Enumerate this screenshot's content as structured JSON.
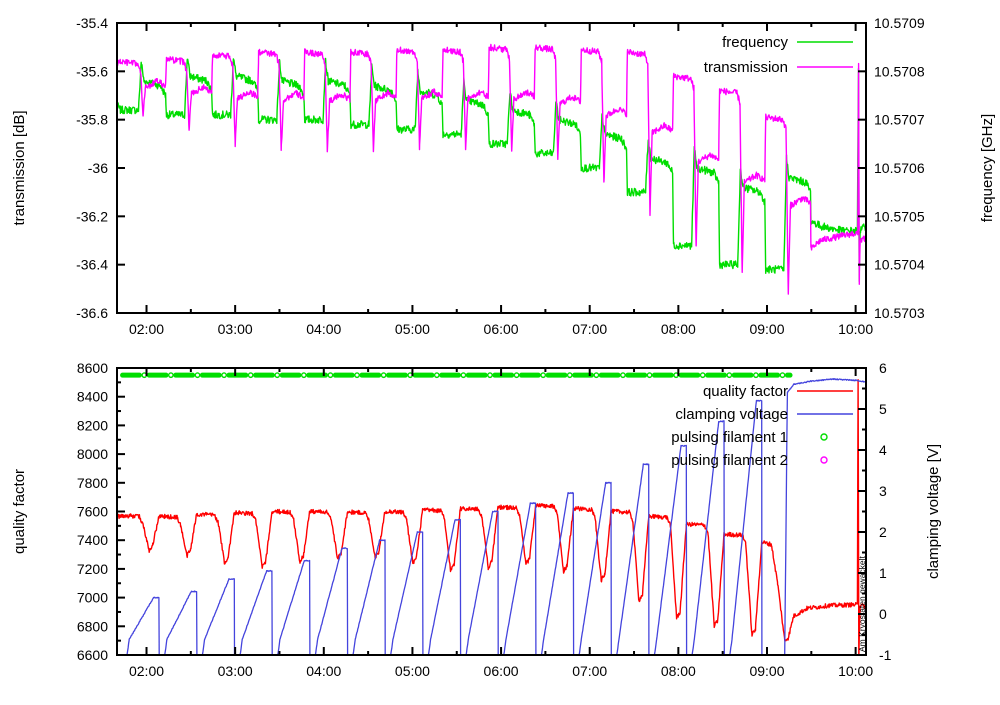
{
  "chart_data": [
    {
      "type": "line",
      "panel": "top",
      "x_axis": {
        "min_hour": 1.667,
        "max_hour": 10.117,
        "minor_step": 0.5,
        "ticks": [
          {
            "v": 2,
            "label": "02:00"
          },
          {
            "v": 3,
            "label": "03:00"
          },
          {
            "v": 4,
            "label": "04:00"
          },
          {
            "v": 5,
            "label": "05:00"
          },
          {
            "v": 6,
            "label": "06:00"
          },
          {
            "v": 7,
            "label": "07:00"
          },
          {
            "v": 8,
            "label": "08:00"
          },
          {
            "v": 9,
            "label": "09:00"
          },
          {
            "v": 10,
            "label": "10:00"
          }
        ]
      },
      "y_left": {
        "label": "transmission [dB]",
        "min": -36.6,
        "max": -35.4,
        "ticks": [
          {
            "v": -35.4,
            "label": "-35.4"
          },
          {
            "v": -35.6,
            "label": "-35.6"
          },
          {
            "v": -35.8,
            "label": "-35.8"
          },
          {
            "v": -36,
            "label": "-36"
          },
          {
            "v": -36.2,
            "label": "-36.2"
          },
          {
            "v": -36.4,
            "label": "-36.4"
          },
          {
            "v": -36.6,
            "label": "-36.6"
          }
        ]
      },
      "y_right": {
        "label": "frequency [GHz]",
        "min": 10.5703,
        "max": 10.5709,
        "ticks": [
          {
            "v": 10.5709,
            "label": "10.5709"
          },
          {
            "v": 10.5708,
            "label": "10.5708"
          },
          {
            "v": 10.5707,
            "label": "10.5707"
          },
          {
            "v": 10.5706,
            "label": "10.5706"
          },
          {
            "v": 10.5705,
            "label": "10.5705"
          },
          {
            "v": 10.5704,
            "label": "10.5704"
          },
          {
            "v": 10.5703,
            "label": "10.5703"
          }
        ]
      },
      "legend": [
        {
          "label": "frequency",
          "color": "#00dd00",
          "sample": "line"
        },
        {
          "label": "transmission",
          "color": "#ff00ff",
          "sample": "line"
        }
      ],
      "series": [
        {
          "name": "frequency",
          "axis": "right",
          "color": "#00dd00",
          "width": 1.4,
          "noise": 8e-06,
          "pattern": {
            "kind": "square-low-high",
            "start": 1.7,
            "period": 0.52,
            "count": 15,
            "high": [
              10.57078,
              10.57079,
              10.57079,
              10.57078,
              10.57078,
              10.57077,
              10.57076,
              10.57074,
              10.57072,
              10.5707,
              10.57067,
              10.57062,
              10.5706,
              10.57056,
              10.57058
            ],
            "low": [
              10.57072,
              10.57071,
              10.57071,
              10.5707,
              10.5707,
              10.57069,
              10.57068,
              10.57067,
              10.57065,
              10.57063,
              10.5706,
              10.57055,
              10.57044,
              10.5704,
              10.57039
            ]
          },
          "pre": [
            [
              1.667,
              10.57073
            ]
          ],
          "post": [
            [
              9.285,
              10.57051
            ],
            [
              9.4,
              10.5705
            ],
            [
              9.6,
              10.57048
            ],
            [
              9.85,
              10.57047
            ],
            [
              10.02,
              10.57047
            ],
            [
              10.032,
              10.5708
            ],
            [
              10.04,
              10.57037
            ],
            [
              10.05,
              10.57047
            ],
            [
              10.117,
              10.57048
            ]
          ]
        },
        {
          "name": "transmission",
          "axis": "left",
          "color": "#ff00ff",
          "width": 1.4,
          "noise": 0.013,
          "pattern": {
            "kind": "square-top",
            "start": 1.7,
            "period": 0.52,
            "count": 15,
            "high": [
              -35.56,
              -35.55,
              -35.53,
              -35.52,
              -35.52,
              -35.52,
              -35.51,
              -35.51,
              -35.5,
              -35.5,
              -35.51,
              -35.52,
              -35.62,
              -35.68,
              -35.79
            ],
            "low": [
              -35.78,
              -35.84,
              -35.9,
              -35.92,
              -35.93,
              -35.92,
              -35.92,
              -35.92,
              -35.93,
              -35.97,
              -36.06,
              -36.19,
              -36.33,
              -36.44,
              -36.52
            ]
          },
          "pre": [
            [
              1.667,
              -35.57
            ]
          ],
          "post": [
            [
              9.285,
              -36.5
            ],
            [
              9.42,
              -36.36
            ],
            [
              9.6,
              -36.3
            ],
            [
              9.85,
              -36.28
            ],
            [
              10.0,
              -36.27
            ],
            [
              10.025,
              -36.27
            ],
            [
              10.033,
              -35.57
            ],
            [
              10.041,
              -36.47
            ],
            [
              10.05,
              -36.3
            ],
            [
              10.117,
              -36.29
            ]
          ]
        }
      ]
    },
    {
      "type": "line",
      "panel": "bottom",
      "x_axis": {
        "min_hour": 1.667,
        "max_hour": 10.117,
        "minor_step": 0.5,
        "ticks": [
          {
            "v": 2,
            "label": "02:00"
          },
          {
            "v": 3,
            "label": "03:00"
          },
          {
            "v": 4,
            "label": "04:00"
          },
          {
            "v": 5,
            "label": "05:00"
          },
          {
            "v": 6,
            "label": "06:00"
          },
          {
            "v": 7,
            "label": "07:00"
          },
          {
            "v": 8,
            "label": "08:00"
          },
          {
            "v": 9,
            "label": "09:00"
          },
          {
            "v": 10,
            "label": "10:00"
          }
        ]
      },
      "y_left": {
        "label": "quality factor",
        "min": 6600,
        "max": 8600,
        "minor_step": 100,
        "ticks": [
          {
            "v": 8600,
            "label": "8600"
          },
          {
            "v": 8400,
            "label": "8400"
          },
          {
            "v": 8200,
            "label": "8200"
          },
          {
            "v": 8000,
            "label": "8000"
          },
          {
            "v": 7800,
            "label": "7800"
          },
          {
            "v": 7600,
            "label": "7600"
          },
          {
            "v": 7400,
            "label": "7400"
          },
          {
            "v": 7200,
            "label": "7200"
          },
          {
            "v": 7000,
            "label": "7000"
          },
          {
            "v": 6800,
            "label": "6800"
          },
          {
            "v": 6600,
            "label": "6600"
          }
        ]
      },
      "y_right": {
        "label": "clamping voltage [V]",
        "min": -1,
        "max": 6,
        "minor_step": 0.5,
        "ticks": [
          {
            "v": 6,
            "label": "6"
          },
          {
            "v": 5,
            "label": "5"
          },
          {
            "v": 4,
            "label": "4"
          },
          {
            "v": 3,
            "label": "3"
          },
          {
            "v": 2,
            "label": "2"
          },
          {
            "v": 1,
            "label": "1"
          },
          {
            "v": 0,
            "label": "0"
          },
          {
            "v": -1,
            "label": "-1"
          }
        ]
      },
      "legend": [
        {
          "label": "quality factor",
          "color": "#ff0000",
          "sample": "line"
        },
        {
          "label": "clamping voltage",
          "color": "#4444dd",
          "sample": "line"
        },
        {
          "label": "pulsing filament 1",
          "color": "#00dd00",
          "sample": "marker"
        },
        {
          "label": "pulsing filament 2",
          "color": "#ff00ff",
          "sample": "marker"
        }
      ],
      "series": [
        {
          "name": "quality factor",
          "axis": "left",
          "color": "#ff0000",
          "width": 1.4,
          "noise": 15,
          "pattern": {
            "kind": "dip-cycles",
            "start": 1.78,
            "period": 0.425,
            "count": 17,
            "end_high": 7385,
            "high": [
              7570,
              7565,
              7580,
              7590,
              7600,
              7600,
              7595,
              7600,
              7610,
              7620,
              7630,
              7640,
              7620,
              7600,
              7565,
              7510,
              7440
            ],
            "low": [
              7330,
              7290,
              7240,
              7210,
              7250,
              7270,
              7280,
              7240,
              7190,
              7210,
              7230,
              7180,
              7120,
              6980,
              6860,
              6800,
              6740
            ]
          },
          "pre": [
            [
              1.667,
              7565
            ]
          ],
          "post": [
            [
              8.95,
              7385
            ],
            [
              9.05,
              7370
            ],
            [
              9.12,
              7100
            ],
            [
              9.2,
              6700
            ],
            [
              9.24,
              6720
            ],
            [
              9.3,
              6870
            ],
            [
              9.45,
              6925
            ],
            [
              9.7,
              6945
            ],
            [
              9.95,
              6950
            ],
            [
              10.02,
              6950
            ],
            [
              10.028,
              8530
            ],
            [
              10.036,
              6590
            ],
            [
              10.05,
              6945
            ],
            [
              10.117,
              6940
            ]
          ]
        },
        {
          "name": "clamping voltage",
          "axis": "right",
          "color": "#4444dd",
          "width": 1.3,
          "noise": 0.012,
          "pattern": {
            "kind": "ramp-cycles",
            "start": 1.78,
            "period": 0.425,
            "count": 17,
            "base": -0.62,
            "floor": -1.02,
            "peaks": [
              0.4,
              0.55,
              0.85,
              1.05,
              1.3,
              1.6,
              1.8,
              2.0,
              2.3,
              2.5,
              2.7,
              2.95,
              3.2,
              3.65,
              4.1,
              4.7,
              5.2
            ]
          },
          "post_segment": [
            [
              9.2,
              -1.02
            ],
            [
              9.23,
              5.4
            ],
            [
              9.3,
              5.6
            ],
            [
              9.5,
              5.68
            ],
            [
              9.75,
              5.73
            ],
            [
              10.0,
              5.7
            ],
            [
              10.117,
              5.66
            ]
          ]
        },
        {
          "name": "pulsing filament 1",
          "axis": "left",
          "color": "#00dd00",
          "pattern": {
            "kind": "dash-row",
            "y": 8550,
            "start": 1.73,
            "end": 9.26,
            "period": 0.3,
            "dash": 0.19
          }
        },
        {
          "name": "pulsing filament 2",
          "axis": "left",
          "color": "#ff00ff",
          "pattern": {
            "kind": "markers"
          },
          "points": []
        }
      ],
      "annotation": {
        "text": "Am Kryostaten gewackelt",
        "hour": 10.06
      }
    }
  ]
}
